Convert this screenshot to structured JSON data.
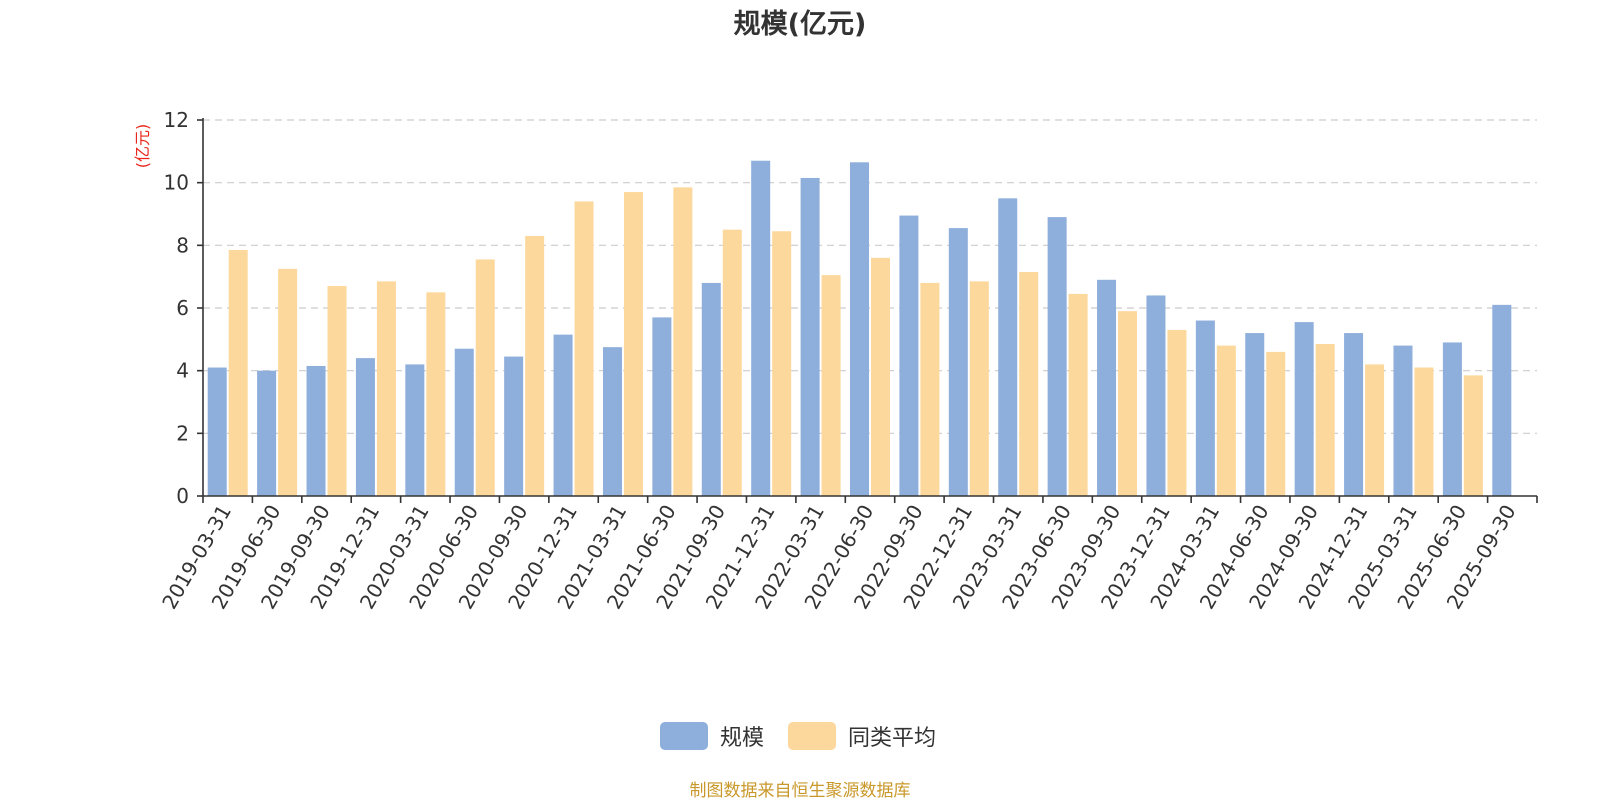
{
  "chart_data": {
    "type": "bar",
    "title": "规模(亿元)",
    "ylabel": "(亿元)",
    "ylim": [
      0,
      12
    ],
    "yticks": [
      0,
      2,
      4,
      6,
      8,
      10,
      12
    ],
    "grid": true,
    "legend_position": "bottom-center",
    "categories": [
      "2019-03-31",
      "2019-06-30",
      "2019-09-30",
      "2019-12-31",
      "2020-03-31",
      "2020-06-30",
      "2020-09-30",
      "2020-12-31",
      "2021-03-31",
      "2021-06-30",
      "2021-09-30",
      "2021-12-31",
      "2022-03-31",
      "2022-06-30",
      "2022-09-30",
      "2022-12-31",
      "2023-03-31",
      "2023-06-30",
      "2023-09-30",
      "2023-12-31",
      "2024-03-31",
      "2024-06-30",
      "2024-09-30",
      "2024-12-31",
      "2025-03-31",
      "2025-06-30",
      "2025-09-30"
    ],
    "series": [
      {
        "name": "规模",
        "color": "#8eaedb",
        "values": [
          4.1,
          4.0,
          4.15,
          4.4,
          4.2,
          4.7,
          4.45,
          5.15,
          4.75,
          5.7,
          6.8,
          10.7,
          10.15,
          10.65,
          8.95,
          8.55,
          9.5,
          8.9,
          6.9,
          6.4,
          5.6,
          5.2,
          5.55,
          5.2,
          4.8,
          4.9,
          6.1
        ]
      },
      {
        "name": "同类平均",
        "color": "#fdd89c",
        "values": [
          7.85,
          7.25,
          6.7,
          6.85,
          6.5,
          7.55,
          8.3,
          9.4,
          9.7,
          9.85,
          8.5,
          8.45,
          7.05,
          7.6,
          6.8,
          6.85,
          7.15,
          6.45,
          5.9,
          5.3,
          4.8,
          4.6,
          4.85,
          4.2,
          4.1,
          3.85,
          null
        ]
      }
    ]
  },
  "source": "制图数据来自恒生聚源数据库"
}
